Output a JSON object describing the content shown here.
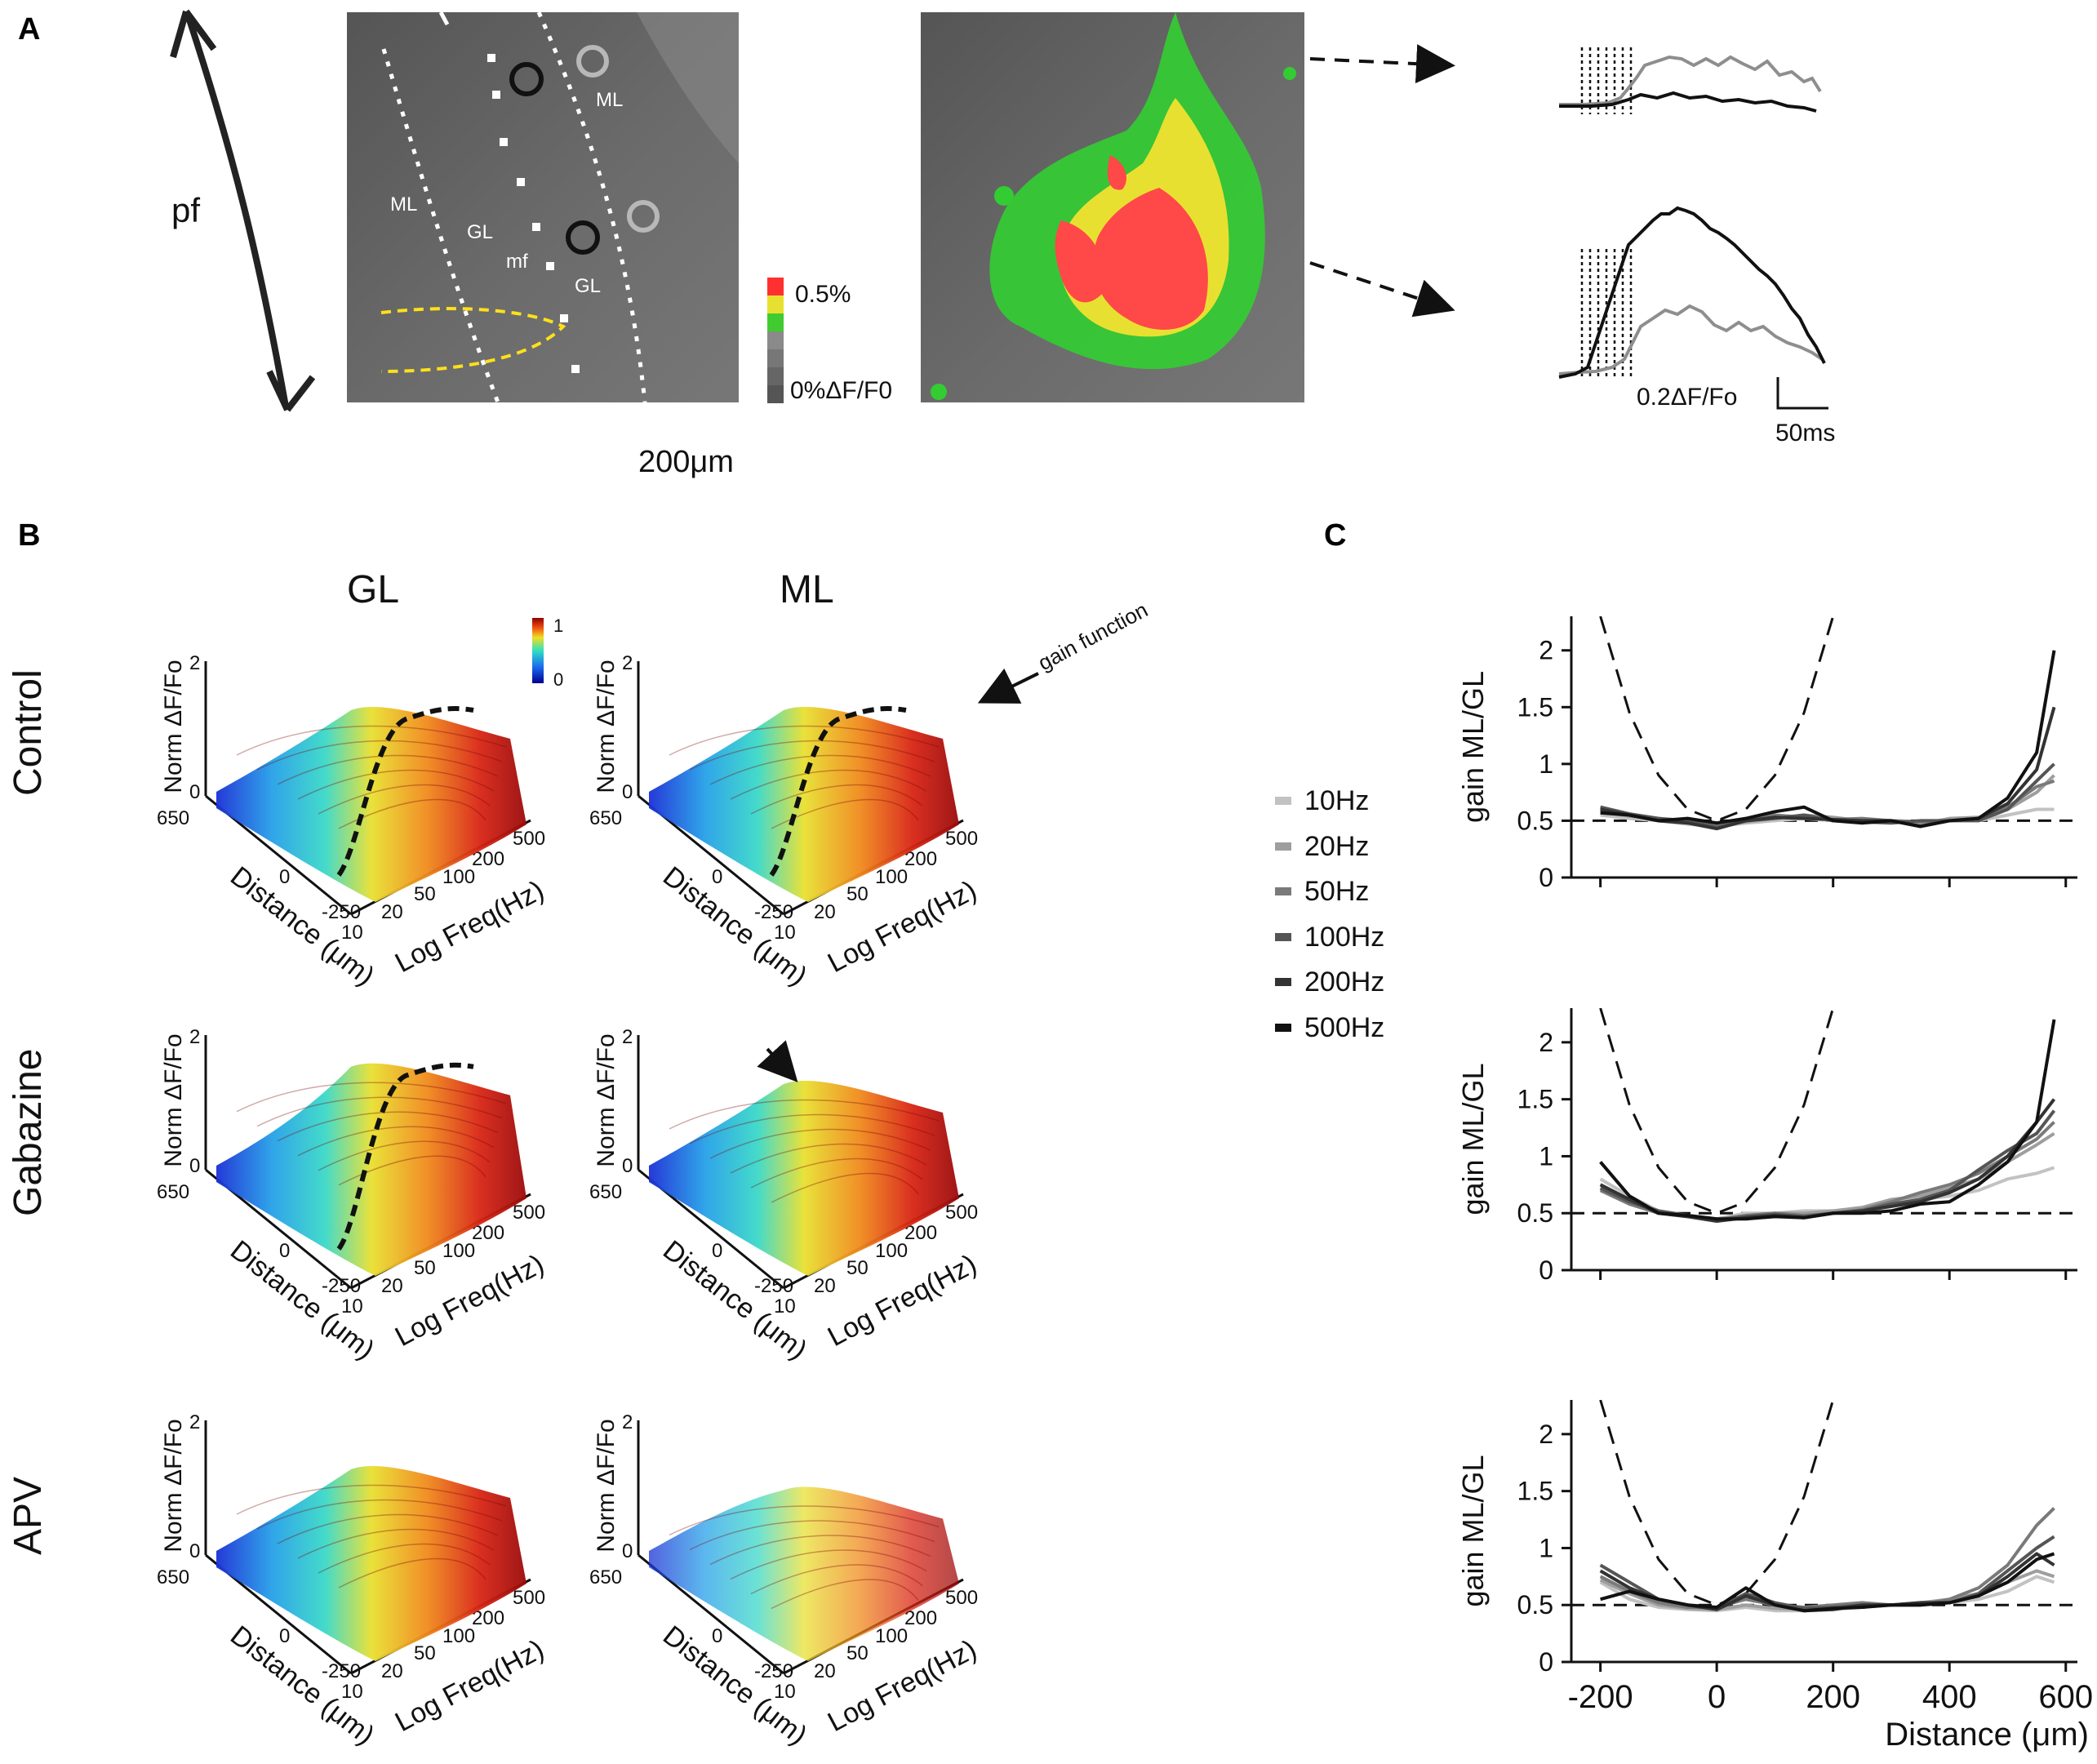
{
  "panels": {
    "a": "A",
    "b": "B",
    "c": "C"
  },
  "panel_a": {
    "axis_label": "pf",
    "scale_bar_label": "200μm",
    "image_labels": {
      "ml_top": "ML",
      "ml_left": "ML",
      "gl_left": "GL",
      "mf": "mf",
      "gl_right": "GL"
    },
    "colorbar": {
      "max_label": "0.5%",
      "min_label": "0%ΔF/F0"
    },
    "trace_scale": {
      "y_label": "0.2ΔF/Fo",
      "x_label": "50ms"
    }
  },
  "panel_b": {
    "column_titles": [
      "GL",
      "ML"
    ],
    "row_titles": [
      "Control",
      "Gabazine",
      "APV"
    ],
    "z_axis_label": "Norm ΔF/Fo",
    "z_ticks": [
      "0",
      "2"
    ],
    "distance_axis_label": "Distance (μm)",
    "distance_ticks": [
      "650",
      "0",
      "-250"
    ],
    "freq_axis_label": "Log Freq(Hz)",
    "freq_ticks": [
      "10",
      "20",
      "50",
      "100",
      "200",
      "500"
    ],
    "colorbar_labels": [
      "1",
      "0"
    ],
    "annotation": "gain function"
  },
  "colors": {
    "low": "#1a2fd6",
    "mid": "#e8e030",
    "high": "#9a0a0a",
    "ml_stain": "#ff4040",
    "green": "#33cc33"
  },
  "chart_data": [
    {
      "type": "line",
      "title": "Control",
      "xlabel": "Distance (μm)",
      "ylabel": "gain ML/GL",
      "xlim": [
        -250,
        620
      ],
      "ylim": [
        0,
        2.3
      ],
      "xticks": [
        -200,
        0,
        200,
        400,
        600
      ],
      "yticks": [
        0,
        0.5,
        1,
        1.5,
        2
      ],
      "ytick_labels": [
        "0",
        "0.5",
        "1",
        "1.5",
        "2"
      ],
      "reference_line": 0.5,
      "parabola": [
        {
          "x": -200,
          "y": 2.3
        },
        {
          "x": -150,
          "y": 1.45
        },
        {
          "x": -100,
          "y": 0.9
        },
        {
          "x": -50,
          "y": 0.6
        },
        {
          "x": 0,
          "y": 0.5
        },
        {
          "x": 50,
          "y": 0.6
        },
        {
          "x": 100,
          "y": 0.9
        },
        {
          "x": 150,
          "y": 1.45
        },
        {
          "x": 200,
          "y": 2.3
        }
      ],
      "x": [
        -200,
        -150,
        -100,
        -50,
        0,
        50,
        100,
        150,
        200,
        250,
        300,
        350,
        400,
        450,
        500,
        550,
        580
      ],
      "series": [
        {
          "name": "10Hz",
          "color": "#c2c2c2",
          "values": [
            0.55,
            0.52,
            0.5,
            0.47,
            0.45,
            0.48,
            0.5,
            0.52,
            0.5,
            0.5,
            0.49,
            0.48,
            0.5,
            0.5,
            0.55,
            0.6,
            0.6
          ]
        },
        {
          "name": "20Hz",
          "color": "#9e9e9e",
          "values": [
            0.58,
            0.54,
            0.52,
            0.48,
            0.46,
            0.49,
            0.52,
            0.55,
            0.53,
            0.5,
            0.5,
            0.47,
            0.52,
            0.53,
            0.6,
            0.75,
            0.9
          ]
        },
        {
          "name": "50Hz",
          "color": "#7a7a7a",
          "values": [
            0.6,
            0.55,
            0.5,
            0.49,
            0.45,
            0.5,
            0.55,
            0.53,
            0.51,
            0.52,
            0.5,
            0.49,
            0.5,
            0.52,
            0.62,
            0.8,
            0.85
          ]
        },
        {
          "name": "100Hz",
          "color": "#555555",
          "values": [
            0.62,
            0.56,
            0.52,
            0.5,
            0.44,
            0.5,
            0.52,
            0.55,
            0.5,
            0.49,
            0.48,
            0.5,
            0.5,
            0.5,
            0.6,
            0.85,
            1.0
          ]
        },
        {
          "name": "200Hz",
          "color": "#333333",
          "values": [
            0.6,
            0.55,
            0.5,
            0.48,
            0.43,
            0.5,
            0.53,
            0.52,
            0.51,
            0.5,
            0.5,
            0.45,
            0.5,
            0.52,
            0.65,
            0.95,
            1.5
          ]
        },
        {
          "name": "500Hz",
          "color": "#111111",
          "values": [
            0.57,
            0.55,
            0.5,
            0.52,
            0.48,
            0.52,
            0.58,
            0.62,
            0.5,
            0.48,
            0.5,
            0.45,
            0.5,
            0.52,
            0.7,
            1.1,
            2.0
          ]
        }
      ]
    },
    {
      "type": "line",
      "title": "Gabazine",
      "xlabel": "Distance (μm)",
      "ylabel": "gain ML/GL",
      "xlim": [
        -250,
        620
      ],
      "ylim": [
        0,
        2.3
      ],
      "xticks": [
        -200,
        0,
        200,
        400,
        600
      ],
      "yticks": [
        0,
        0.5,
        1,
        1.5,
        2
      ],
      "ytick_labels": [
        "0",
        "0.5",
        "1",
        "1.5",
        "2"
      ],
      "reference_line": 0.5,
      "parabola": [
        {
          "x": -200,
          "y": 2.3
        },
        {
          "x": -150,
          "y": 1.45
        },
        {
          "x": -100,
          "y": 0.9
        },
        {
          "x": -50,
          "y": 0.6
        },
        {
          "x": 0,
          "y": 0.5
        },
        {
          "x": 50,
          "y": 0.6
        },
        {
          "x": 100,
          "y": 0.9
        },
        {
          "x": 150,
          "y": 1.45
        },
        {
          "x": 200,
          "y": 2.3
        }
      ],
      "x": [
        -200,
        -150,
        -100,
        -50,
        0,
        50,
        100,
        150,
        200,
        250,
        300,
        350,
        400,
        450,
        500,
        550,
        580
      ],
      "series": [
        {
          "name": "10Hz",
          "color": "#c2c2c2",
          "values": [
            0.8,
            0.65,
            0.52,
            0.48,
            0.45,
            0.5,
            0.5,
            0.52,
            0.52,
            0.55,
            0.6,
            0.62,
            0.65,
            0.7,
            0.8,
            0.85,
            0.9
          ]
        },
        {
          "name": "20Hz",
          "color": "#9e9e9e",
          "values": [
            0.75,
            0.6,
            0.5,
            0.48,
            0.45,
            0.48,
            0.5,
            0.5,
            0.52,
            0.55,
            0.62,
            0.65,
            0.72,
            0.8,
            0.95,
            1.1,
            1.2
          ]
        },
        {
          "name": "50Hz",
          "color": "#7a7a7a",
          "values": [
            0.7,
            0.58,
            0.5,
            0.47,
            0.44,
            0.48,
            0.5,
            0.48,
            0.5,
            0.53,
            0.6,
            0.68,
            0.75,
            0.85,
            1.0,
            1.15,
            1.3
          ]
        },
        {
          "name": "100Hz",
          "color": "#555555",
          "values": [
            0.72,
            0.6,
            0.52,
            0.48,
            0.44,
            0.47,
            0.49,
            0.47,
            0.5,
            0.52,
            0.58,
            0.62,
            0.7,
            0.88,
            1.05,
            1.2,
            1.4
          ]
        },
        {
          "name": "200Hz",
          "color": "#333333",
          "values": [
            0.75,
            0.62,
            0.5,
            0.47,
            0.43,
            0.46,
            0.48,
            0.46,
            0.5,
            0.52,
            0.56,
            0.6,
            0.68,
            0.8,
            1.0,
            1.3,
            1.5
          ]
        },
        {
          "name": "500Hz",
          "color": "#111111",
          "values": [
            0.95,
            0.65,
            0.5,
            0.48,
            0.45,
            0.45,
            0.47,
            0.46,
            0.5,
            0.5,
            0.52,
            0.58,
            0.6,
            0.75,
            0.95,
            1.3,
            2.2
          ]
        }
      ]
    },
    {
      "type": "line",
      "title": "APV",
      "xlabel": "Distance (μm)",
      "ylabel": "gain ML/GL",
      "xlim": [
        -250,
        620
      ],
      "ylim": [
        0,
        2.3
      ],
      "xticks": [
        -200,
        0,
        200,
        400,
        600
      ],
      "xtick_labels": [
        "-200",
        "0",
        "200",
        "400",
        "600"
      ],
      "yticks": [
        0,
        0.5,
        1,
        1.5,
        2
      ],
      "ytick_labels": [
        "0",
        "0.5",
        "1",
        "1.5",
        "2"
      ],
      "reference_line": 0.5,
      "parabola": [
        {
          "x": -200,
          "y": 2.3
        },
        {
          "x": -150,
          "y": 1.45
        },
        {
          "x": -100,
          "y": 0.9
        },
        {
          "x": -50,
          "y": 0.6
        },
        {
          "x": 0,
          "y": 0.5
        },
        {
          "x": 50,
          "y": 0.6
        },
        {
          "x": 100,
          "y": 0.9
        },
        {
          "x": 150,
          "y": 1.45
        },
        {
          "x": 200,
          "y": 2.3
        }
      ],
      "x": [
        -200,
        -150,
        -100,
        -50,
        0,
        50,
        100,
        150,
        200,
        250,
        300,
        350,
        400,
        450,
        500,
        550,
        580
      ],
      "series": [
        {
          "name": "10Hz",
          "color": "#c2c2c2",
          "values": [
            0.7,
            0.55,
            0.48,
            0.46,
            0.45,
            0.48,
            0.45,
            0.45,
            0.46,
            0.48,
            0.5,
            0.52,
            0.52,
            0.55,
            0.62,
            0.75,
            0.7
          ]
        },
        {
          "name": "20Hz",
          "color": "#9e9e9e",
          "values": [
            0.72,
            0.6,
            0.5,
            0.47,
            0.46,
            0.5,
            0.47,
            0.46,
            0.48,
            0.5,
            0.5,
            0.52,
            0.55,
            0.6,
            0.7,
            0.8,
            0.75
          ]
        },
        {
          "name": "50Hz",
          "color": "#7a7a7a",
          "values": [
            0.75,
            0.62,
            0.52,
            0.48,
            0.48,
            0.55,
            0.5,
            0.48,
            0.5,
            0.52,
            0.5,
            0.5,
            0.55,
            0.65,
            0.85,
            1.2,
            1.35
          ]
        },
        {
          "name": "100Hz",
          "color": "#555555",
          "values": [
            0.85,
            0.7,
            0.55,
            0.5,
            0.47,
            0.6,
            0.52,
            0.47,
            0.48,
            0.5,
            0.5,
            0.5,
            0.52,
            0.6,
            0.8,
            1.0,
            1.1
          ]
        },
        {
          "name": "200Hz",
          "color": "#333333",
          "values": [
            0.8,
            0.65,
            0.55,
            0.5,
            0.46,
            0.58,
            0.5,
            0.45,
            0.46,
            0.5,
            0.5,
            0.52,
            0.52,
            0.58,
            0.75,
            0.95,
            0.85
          ]
        },
        {
          "name": "500Hz",
          "color": "#111111",
          "values": [
            0.55,
            0.62,
            0.55,
            0.5,
            0.48,
            0.65,
            0.5,
            0.45,
            0.47,
            0.48,
            0.5,
            0.5,
            0.52,
            0.58,
            0.7,
            0.9,
            0.95
          ]
        }
      ]
    }
  ]
}
